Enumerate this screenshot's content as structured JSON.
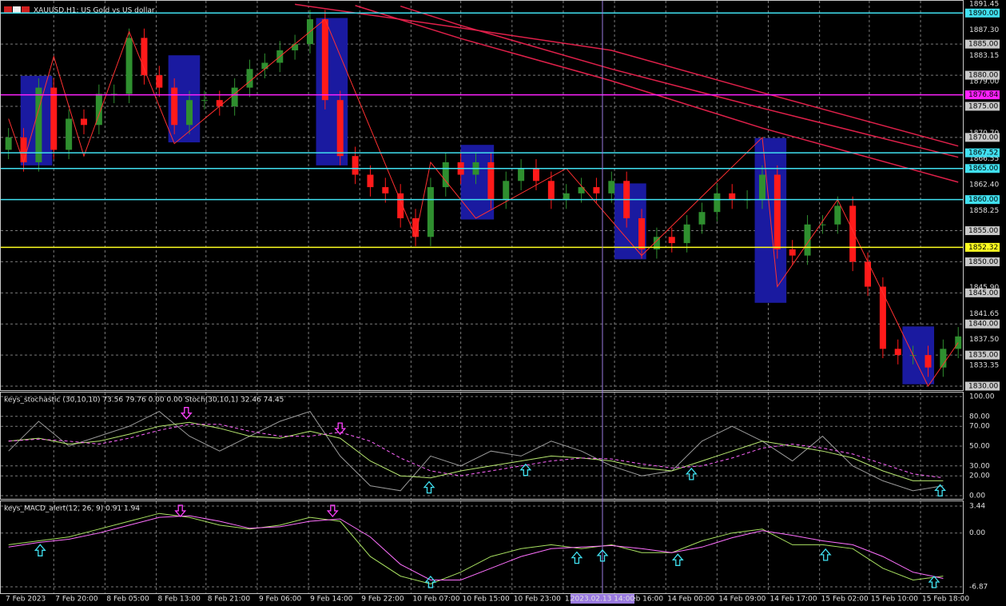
{
  "chart_data": [
    {
      "type": "candlestick",
      "title": "XAUUSD,H1: US Gold vs US dollar",
      "xlim": [
        -0.3,
        63.2
      ],
      "xticks": [
        {
          "value": -0.3,
          "label": "7 Feb 2023"
        },
        {
          "value": 3.0,
          "label": "7 Feb 20:00"
        },
        {
          "value": 6.4,
          "label": "8 Feb 05:00"
        },
        {
          "value": 9.8,
          "label": "8 Feb 13:00"
        },
        {
          "value": 13.1,
          "label": "8 Feb 21:00"
        },
        {
          "value": 16.5,
          "label": "9 Feb 06:00"
        },
        {
          "value": 19.9,
          "label": "9 Feb 14:00"
        },
        {
          "value": 23.3,
          "label": "9 Feb 22:00"
        },
        {
          "value": 26.7,
          "label": "10 Feb 07:00"
        },
        {
          "value": 30.0,
          "label": "10 Feb 15:00"
        },
        {
          "value": 33.4,
          "label": "10 Feb 23:00"
        },
        {
          "value": 36.8,
          "label": "13 Feb 07:00"
        },
        {
          "value": 40.2,
          "label": "13 Feb 16:00"
        },
        {
          "value": 43.6,
          "label": "14 Feb 00:00"
        },
        {
          "value": 47.0,
          "label": "14 Feb 09:00"
        },
        {
          "value": 50.4,
          "label": "14 Feb 17:00"
        },
        {
          "value": 53.8,
          "label": "15 Feb 02:00"
        },
        {
          "value": 57.1,
          "label": "15 Feb 10:00"
        },
        {
          "value": 60.5,
          "label": "15 Feb 18:00"
        }
      ],
      "cursor": {
        "value": 39.4,
        "label": "2023.02.13 14:00",
        "color": "#9a7ae0"
      },
      "ylim": [
        1830,
        1891.45
      ],
      "yticks": [
        {
          "value": 1891.45,
          "label": "1891.45"
        },
        {
          "value": 1887.3,
          "label": "1887.30"
        },
        {
          "value": 1883.15,
          "label": "1883.15"
        },
        {
          "value": 1879,
          "label": "1879.00"
        },
        {
          "value": 1870.7,
          "label": "1870.70"
        },
        {
          "value": 1866.55,
          "label": "1866.55"
        },
        {
          "value": 1862.4,
          "label": "1862.40"
        },
        {
          "value": 1858.25,
          "label": "1858.25"
        },
        {
          "value": 1845.9,
          "label": "1845.90"
        },
        {
          "value": 1841.65,
          "label": "1841.65"
        },
        {
          "value": 1837.5,
          "label": "1837.50"
        },
        {
          "value": 1833.35,
          "label": "1833.35"
        }
      ],
      "levels": [
        {
          "value": 1885,
          "label": "1885.00"
        },
        {
          "value": 1880,
          "label": "1880.00"
        },
        {
          "value": 1875,
          "label": "1875.00"
        },
        {
          "value": 1870,
          "label": "1870.00"
        },
        {
          "value": 1855,
          "label": "1855.00"
        },
        {
          "value": 1850,
          "label": "1850.00"
        },
        {
          "value": 1845,
          "label": "1845.00"
        },
        {
          "value": 1840,
          "label": "1840.00"
        },
        {
          "value": 1835,
          "label": "1835.00"
        },
        {
          "value": 1830,
          "label": "1830.00"
        }
      ],
      "hlines": [
        {
          "value": 1890,
          "label": "1890.00",
          "color": "#40e0f0"
        },
        {
          "value": 1876.84,
          "label": "1876.84",
          "color": "#ff20ff"
        },
        {
          "value": 1867.52,
          "label": "1867.52",
          "color": "#40e0f0"
        },
        {
          "value": 1865,
          "label": "1865.00",
          "color": "#40e0f0"
        },
        {
          "value": 1860,
          "label": "1860.00",
          "color": "#40e0f0"
        },
        {
          "value": 1852.32,
          "label": "1852.32",
          "color": "#ffff20"
        }
      ],
      "grid": true,
      "up_color": "#2f8f2f",
      "down_color": "#ff1a1a",
      "open": [
        1868,
        1870,
        1866,
        1878,
        1868,
        1873,
        1872,
        1877,
        1877,
        1886,
        1880,
        1878,
        1872,
        1876,
        1876,
        1875,
        1878,
        1881,
        1882,
        1884,
        1885,
        1889,
        1876,
        1867,
        1864,
        1862,
        1861,
        1857,
        1854,
        1862,
        1866,
        1864,
        1866,
        1860,
        1863,
        1865,
        1863,
        1860,
        1861,
        1862,
        1861,
        1863,
        1857,
        1852,
        1854,
        1853,
        1856,
        1858,
        1861,
        1860,
        1860,
        1864,
        1852,
        1851,
        1856,
        1856,
        1859,
        1850,
        1846,
        1836,
        1835,
        1835,
        1833,
        1836
      ],
      "high": [
        1871.5,
        1871.5,
        1879.5,
        1879.5,
        1874.5,
        1874.5,
        1878.5,
        1878.5,
        1887.5,
        1887.5,
        1881.5,
        1879.5,
        1877.5,
        1877.5,
        1877.5,
        1879.5,
        1882.5,
        1883.5,
        1885.5,
        1886.5,
        1890.5,
        1890.5,
        1877.5,
        1868.5,
        1865.5,
        1863.5,
        1862.5,
        1858.5,
        1863.5,
        1867.5,
        1867.5,
        1867.5,
        1867.5,
        1864.5,
        1866.5,
        1866.5,
        1864.5,
        1862.5,
        1863.5,
        1863.5,
        1864.5,
        1864.5,
        1858.5,
        1855.5,
        1855.5,
        1857.5,
        1859.5,
        1862.5,
        1862.5,
        1861.5,
        1865.5,
        1865.5,
        1853.5,
        1857.5,
        1857.5,
        1860.5,
        1860.5,
        1851.5,
        1847.5,
        1837.5,
        1836.5,
        1836.5,
        1837.5,
        1839.5
      ],
      "low": [
        1866.5,
        1864.5,
        1864.5,
        1866.5,
        1866.5,
        1870.5,
        1870.5,
        1875.5,
        1875.5,
        1878.5,
        1876.5,
        1870.5,
        1870.5,
        1874.5,
        1873.5,
        1873.5,
        1876.5,
        1879.5,
        1880.5,
        1882.5,
        1883.5,
        1874.5,
        1865.5,
        1862.5,
        1860.5,
        1859.5,
        1855.5,
        1852.5,
        1852.5,
        1860.5,
        1862.5,
        1862.5,
        1858.5,
        1858.5,
        1861.5,
        1861.5,
        1858.5,
        1858.5,
        1859.5,
        1859.5,
        1859.5,
        1855.5,
        1850.5,
        1850.5,
        1851.5,
        1851.5,
        1854.5,
        1856.5,
        1858.5,
        1858.5,
        1858.5,
        1850.5,
        1849.5,
        1849.5,
        1854.5,
        1854.5,
        1848.5,
        1844.5,
        1834.5,
        1833.5,
        1833.5,
        1831.5,
        1831.5,
        1834.5
      ],
      "close": [
        1870,
        1866,
        1878,
        1868,
        1873,
        1872,
        1877,
        1877,
        1886,
        1880,
        1878,
        1872,
        1876,
        1876,
        1875,
        1878,
        1881,
        1882,
        1884,
        1885,
        1889,
        1876,
        1867,
        1864,
        1862,
        1861,
        1857,
        1854,
        1862,
        1866,
        1864,
        1866,
        1860,
        1863,
        1865,
        1863,
        1860,
        1861,
        1862,
        1861,
        1863,
        1857,
        1852,
        1854,
        1853,
        1856,
        1858,
        1861,
        1860,
        1860,
        1864,
        1852,
        1851,
        1856,
        1856,
        1859,
        1850,
        1846,
        1836,
        1835,
        1835,
        1833,
        1836,
        1838
      ],
      "moving_averages": [
        {
          "color": "#e0204a",
          "x": [
            19,
            30,
            40,
            50,
            63
          ],
          "values": [
            1891.4,
            1887.6,
            1884.0,
            1877.2,
            1868.6
          ]
        },
        {
          "color": "#e0204a",
          "x": [
            26,
            30,
            40,
            50,
            63
          ],
          "values": [
            1891.1,
            1888.0,
            1881.0,
            1874.7,
            1866.8
          ]
        },
        {
          "color": "#e0204a",
          "x": [
            23,
            30,
            40,
            50,
            63
          ],
          "values": [
            1891.2,
            1885.9,
            1879.1,
            1871.5,
            1862.8
          ]
        }
      ],
      "zigzag": {
        "color": "#ff3030",
        "x": [
          0,
          1,
          3,
          5,
          8,
          11,
          21,
          27,
          28,
          31,
          37,
          42,
          50,
          51,
          55,
          61,
          63
        ],
        "values": [
          1873,
          1866,
          1883,
          1867,
          1887,
          1869,
          1889,
          1854,
          1866,
          1857,
          1865,
          1851,
          1870,
          1846,
          1860,
          1830,
          1837
        ]
      },
      "zone_color": "#1a1aa0",
      "zones": [
        {
          "x": [
            0.8,
            2.9
          ],
          "y": [
            1865.5,
            1879.9
          ]
        },
        {
          "x": [
            10.6,
            12.7
          ],
          "y": [
            1869.2,
            1883.2
          ]
        },
        {
          "x": [
            20.4,
            22.5
          ],
          "y": [
            1865.5,
            1889.2
          ]
        },
        {
          "x": [
            30.0,
            32.2
          ],
          "y": [
            1856.8,
            1868.8
          ]
        },
        {
          "x": [
            40.2,
            42.3
          ],
          "y": [
            1850.4,
            1862.6
          ]
        },
        {
          "x": [
            49.5,
            51.6
          ],
          "y": [
            1843.4,
            1869.9
          ]
        },
        {
          "x": [
            59.3,
            61.4
          ],
          "y": [
            1830.3,
            1839.6
          ]
        }
      ]
    },
    {
      "type": "line",
      "title": "keys_stochastic (30,10,10) 73.56 79.76 0.00 0.00 Stoch(30,10,1) 32.46 74.45",
      "ylim": [
        0,
        100
      ],
      "yticks": [
        {
          "value": 100,
          "label": "100.00"
        },
        {
          "value": 80,
          "label": "80.00"
        },
        {
          "value": 70,
          "label": "70.00"
        },
        {
          "value": 50,
          "label": "50.00"
        },
        {
          "value": 30,
          "label": "30.00"
        },
        {
          "value": 20,
          "label": "20.00"
        },
        {
          "value": 0,
          "label": "0.00"
        }
      ],
      "x": [
        0,
        2,
        4,
        6,
        8,
        10,
        12,
        14,
        16,
        18,
        20,
        22,
        24,
        26,
        28,
        30,
        32,
        34,
        36,
        38,
        40,
        42,
        44,
        46,
        48,
        50,
        52,
        54,
        56,
        58,
        60,
        62
      ],
      "series": [
        {
          "color": "#9a9a9a",
          "dash": false,
          "values": [
            45,
            75,
            50,
            60,
            70,
            85,
            60,
            45,
            60,
            75,
            85,
            40,
            10,
            5,
            40,
            30,
            45,
            40,
            55,
            45,
            30,
            20,
            25,
            55,
            70,
            55,
            35,
            60,
            30,
            15,
            5,
            10
          ]
        },
        {
          "color": "#b8e870",
          "dash": false,
          "values": [
            55,
            58,
            52,
            55,
            62,
            70,
            74,
            68,
            60,
            58,
            65,
            58,
            35,
            20,
            18,
            25,
            30,
            35,
            40,
            38,
            35,
            28,
            25,
            35,
            45,
            55,
            50,
            45,
            38,
            25,
            15,
            15
          ]
        },
        {
          "color": "#ff66ff",
          "dash": true,
          "values": [
            55,
            57,
            55,
            52,
            58,
            66,
            72,
            72,
            65,
            60,
            60,
            64,
            55,
            38,
            25,
            20,
            25,
            30,
            35,
            38,
            37,
            32,
            28,
            30,
            38,
            48,
            52,
            48,
            42,
            32,
            22,
            18
          ]
        }
      ],
      "arrow_series": 1,
      "up_color": "#40e0f0",
      "down_color": "#ff40ff",
      "up_arrows": [
        27.9,
        34.3,
        45.3,
        61.8
      ],
      "down_arrows": [
        11.8,
        22.0
      ]
    },
    {
      "type": "line",
      "title": "keys_MACD_alert(12, 26, 9) 0.91 1.94",
      "ylim": [
        -6.87,
        3.44
      ],
      "yticks": [
        {
          "value": 3.44,
          "label": "3.44"
        },
        {
          "value": 0,
          "label": "0.00"
        },
        {
          "value": -6.87,
          "label": "-6.87"
        }
      ],
      "x": [
        0,
        2,
        4,
        6,
        8,
        10,
        12,
        14,
        16,
        18,
        20,
        22,
        24,
        26,
        28,
        30,
        32,
        34,
        36,
        38,
        40,
        42,
        44,
        46,
        48,
        50,
        52,
        54,
        56,
        58,
        60,
        62
      ],
      "series": [
        {
          "color": "#a8e060",
          "dash": false,
          "values": [
            -1.5,
            -1,
            -0.5,
            0.5,
            1.5,
            2.5,
            2,
            1,
            0.5,
            1,
            2,
            1.5,
            -3,
            -5.5,
            -6.5,
            -5,
            -3,
            -2,
            -1.5,
            -2,
            -1.5,
            -2.5,
            -2.5,
            -1,
            0,
            0.5,
            -1.5,
            -1.5,
            -2,
            -4.5,
            -6,
            -5.5
          ]
        },
        {
          "color": "#ff70ff",
          "dash": false,
          "values": [
            -1.8,
            -1.2,
            -0.8,
            0,
            1,
            2,
            2.2,
            1.5,
            0.6,
            0.8,
            1.5,
            1.8,
            -0.5,
            -4,
            -6,
            -6,
            -4.5,
            -3,
            -2,
            -1.8,
            -1.6,
            -2,
            -2.5,
            -1.8,
            -0.6,
            0.3,
            -0.3,
            -1,
            -1.5,
            -3,
            -5,
            -5.8
          ]
        }
      ],
      "arrow_series": 0,
      "up_color": "#40e0f0",
      "down_color": "#ff40ff",
      "up_arrows": [
        2.1,
        28.0,
        37.7,
        39.4,
        44.4,
        54.2,
        61.4
      ],
      "down_arrows": [
        11.4,
        21.5
      ]
    }
  ]
}
